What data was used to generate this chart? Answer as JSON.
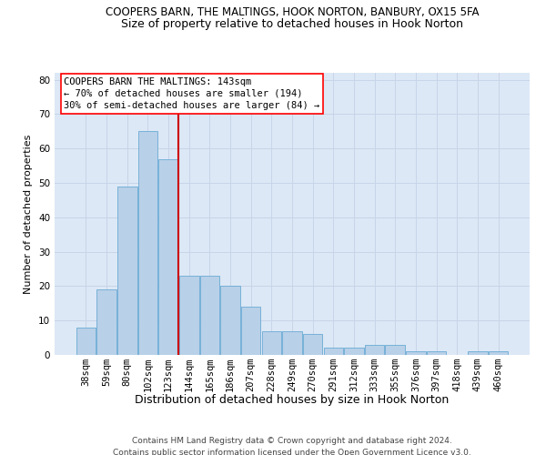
{
  "title_line1": "COOPERS BARN, THE MALTINGS, HOOK NORTON, BANBURY, OX15 5FA",
  "title_line2": "Size of property relative to detached houses in Hook Norton",
  "xlabel": "Distribution of detached houses by size in Hook Norton",
  "ylabel": "Number of detached properties",
  "categories": [
    "38sqm",
    "59sqm",
    "80sqm",
    "102sqm",
    "123sqm",
    "144sqm",
    "165sqm",
    "186sqm",
    "207sqm",
    "228sqm",
    "249sqm",
    "270sqm",
    "291sqm",
    "312sqm",
    "333sqm",
    "355sqm",
    "376sqm",
    "397sqm",
    "418sqm",
    "439sqm",
    "460sqm"
  ],
  "values": [
    8,
    19,
    49,
    65,
    57,
    23,
    23,
    20,
    14,
    7,
    7,
    6,
    2,
    2,
    3,
    3,
    1,
    1,
    0,
    1,
    1
  ],
  "bar_color": "#b8d0e8",
  "bar_edge_color": "#6aaad4",
  "grid_color": "#c8d4e8",
  "background_color": "#dce8f5",
  "annotation_line1": "COOPERS BARN THE MALTINGS: 143sqm",
  "annotation_line2": "← 70% of detached houses are smaller (194)",
  "annotation_line3": "30% of semi-detached houses are larger (84) →",
  "vline_color": "#cc0000",
  "ylim": [
    0,
    82
  ],
  "yticks": [
    0,
    10,
    20,
    30,
    40,
    50,
    60,
    70,
    80
  ],
  "footer_text": "Contains HM Land Registry data © Crown copyright and database right 2024.\nContains public sector information licensed under the Open Government Licence v3.0.",
  "title1_fontsize": 8.5,
  "title2_fontsize": 9.0,
  "ylabel_fontsize": 8.0,
  "xlabel_fontsize": 9.0,
  "tick_fontsize": 7.5,
  "ann_fontsize": 7.5,
  "footer_fontsize": 6.5
}
